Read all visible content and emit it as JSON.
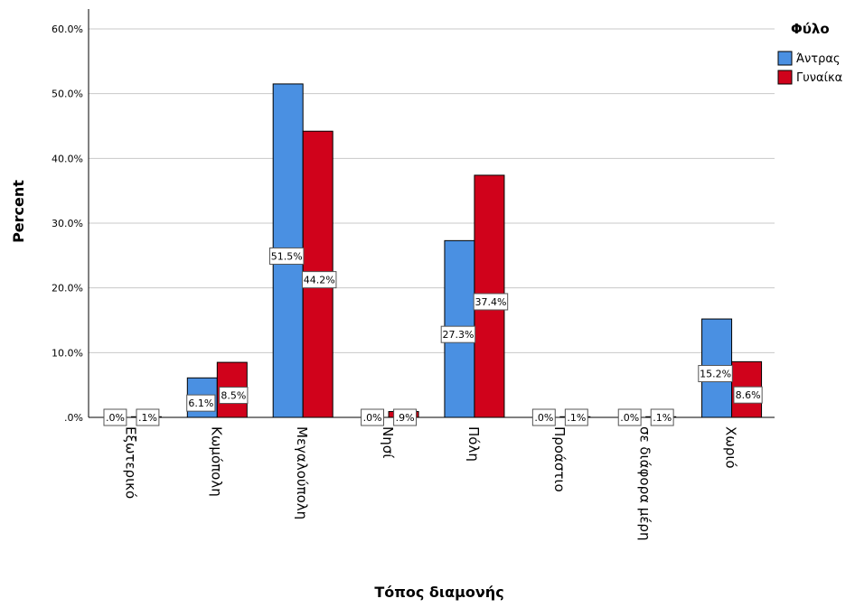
{
  "chart_data": {
    "type": "bar",
    "xlabel": "Τόπος διαμονής",
    "ylabel": "Percent",
    "ylim": [
      0,
      60
    ],
    "yticks": [
      ".0%",
      "10.0%",
      "20.0%",
      "30.0%",
      "40.0%",
      "50.0%",
      "60.0%"
    ],
    "grid": true,
    "legend_position": "top-right",
    "legend_title": "Φύλο",
    "categories": [
      "Εξωτερικό",
      "Κωμόπολη",
      "Μεγαλούπολη",
      "Νησί",
      "Πόλη",
      "Προάστιο",
      "σε διάφορα μέρη",
      "Χωριό"
    ],
    "series": [
      {
        "name": "Άντρας",
        "color": "#4a90e2",
        "values": [
          0.0,
          6.1,
          51.5,
          0.0,
          27.3,
          0.0,
          0.0,
          15.2
        ],
        "labels": [
          ".0%",
          "6.1%",
          "51.5%",
          ".0%",
          "27.3%",
          ".0%",
          ".0%",
          "15.2%"
        ]
      },
      {
        "name": "Γυναίκα",
        "color": "#d0021b",
        "values": [
          0.1,
          8.5,
          44.2,
          0.9,
          37.4,
          0.1,
          0.1,
          8.6
        ],
        "labels": [
          ".1%",
          "8.5%",
          "44.2%",
          ".9%",
          "37.4%",
          ".1%",
          ".1%",
          "8.6%"
        ]
      }
    ]
  }
}
